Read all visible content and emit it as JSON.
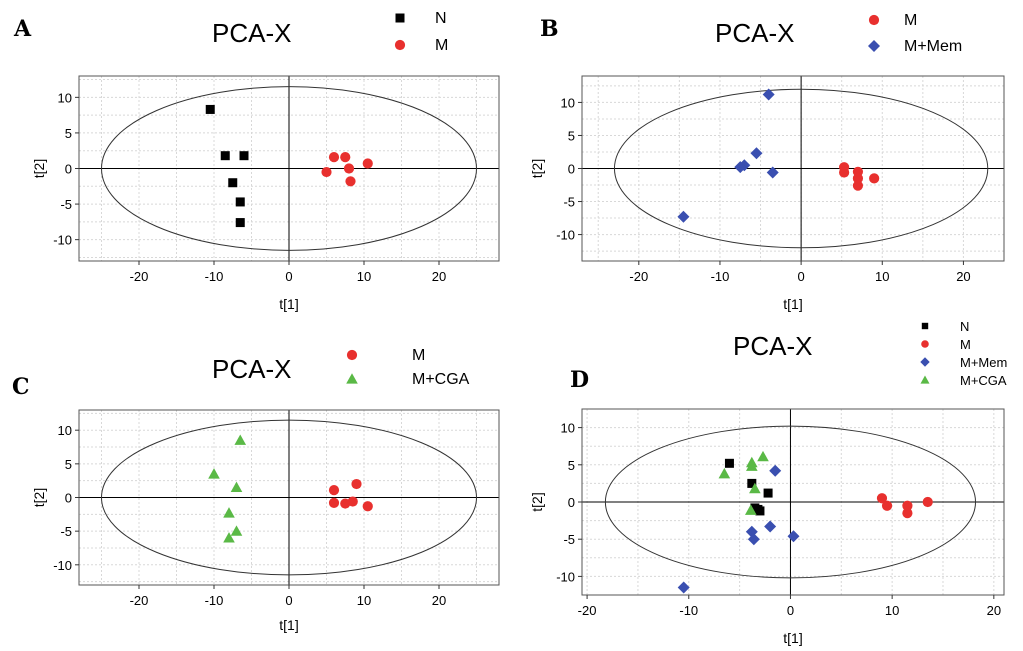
{
  "chart_data": [
    {
      "panel": "A",
      "type": "scatter",
      "title": "PCA-X",
      "xlabel": "t[1]",
      "ylabel": "t[2]",
      "xlim": [
        -28,
        28
      ],
      "ylim": [
        -13,
        13
      ],
      "xticks": [
        -20,
        -10,
        0,
        10,
        20
      ],
      "yticks": [
        10,
        5,
        0,
        -5,
        -10
      ],
      "ellipse": {
        "rx": 25,
        "ry": 11.5
      },
      "grid": true,
      "series": [
        {
          "name": "N",
          "color": "#000000",
          "marker": "square",
          "points": [
            [
              -10.5,
              8.3
            ],
            [
              -8.5,
              1.8
            ],
            [
              -6,
              1.8
            ],
            [
              -7.5,
              -2
            ],
            [
              -6.5,
              -4.7
            ],
            [
              -6.5,
              -7.6
            ]
          ]
        },
        {
          "name": "M",
          "color": "#e8302e",
          "marker": "circle",
          "points": [
            [
              6,
              1.6
            ],
            [
              7.5,
              1.6
            ],
            [
              8,
              0
            ],
            [
              10.5,
              0.7
            ],
            [
              5,
              -0.5
            ],
            [
              8.2,
              -1.8
            ]
          ]
        }
      ]
    },
    {
      "panel": "B",
      "type": "scatter",
      "title": "PCA-X",
      "xlabel": "t[1]",
      "ylabel": "t[2]",
      "xlim": [
        -27,
        25
      ],
      "ylim": [
        -14,
        14
      ],
      "xticks": [
        -20,
        -10,
        0,
        10,
        20
      ],
      "yticks": [
        10,
        5,
        0,
        -5,
        -10
      ],
      "ellipse": {
        "rx": 23,
        "ry": 12
      },
      "grid": true,
      "series": [
        {
          "name": "M",
          "color": "#e8302e",
          "marker": "circle",
          "points": [
            [
              5.3,
              0.2
            ],
            [
              5.3,
              -0.6
            ],
            [
              7,
              -0.5
            ],
            [
              7,
              -1.5
            ],
            [
              7,
              -2.6
            ],
            [
              9,
              -1.5
            ]
          ]
        },
        {
          "name": "M+Mem",
          "color": "#3a4fb0",
          "marker": "diamond",
          "points": [
            [
              -4,
              11.2
            ],
            [
              -5.5,
              2.3
            ],
            [
              -7,
              0.5
            ],
            [
              -7.5,
              0.2
            ],
            [
              -3.5,
              -0.6
            ],
            [
              -14.5,
              -7.3
            ]
          ]
        }
      ]
    },
    {
      "panel": "C",
      "type": "scatter",
      "title": "PCA-X",
      "xlabel": "t[1]",
      "ylabel": "t[2]",
      "xlim": [
        -28,
        28
      ],
      "ylim": [
        -13,
        13
      ],
      "xticks": [
        -20,
        -10,
        0,
        10,
        20
      ],
      "yticks": [
        10,
        5,
        0,
        -5,
        -10
      ],
      "ellipse": {
        "rx": 25,
        "ry": 11.5
      },
      "grid": true,
      "series": [
        {
          "name": "M",
          "color": "#e8302e",
          "marker": "circle",
          "points": [
            [
              6,
              1.1
            ],
            [
              9,
              2
            ],
            [
              6,
              -0.8
            ],
            [
              7.5,
              -0.9
            ],
            [
              8.5,
              -0.6
            ],
            [
              10.5,
              -1.3
            ]
          ]
        },
        {
          "name": "M+CGA",
          "color": "#5ab946",
          "marker": "triangle",
          "points": [
            [
              -6.5,
              8.5
            ],
            [
              -10,
              3.5
            ],
            [
              -7,
              1.5
            ],
            [
              -8,
              -2.3
            ],
            [
              -7,
              -5
            ],
            [
              -8,
              -6
            ]
          ]
        }
      ]
    },
    {
      "panel": "D",
      "type": "scatter",
      "title": "PCA-X",
      "xlabel": "t[1]",
      "ylabel": "t[2]",
      "xlim": [
        -20.5,
        21
      ],
      "ylim": [
        -12.5,
        12.5
      ],
      "xticks": [
        -20,
        -10,
        0,
        10,
        20
      ],
      "yticks": [
        10,
        5,
        0,
        -5,
        -10
      ],
      "ellipse": {
        "rx": 18.2,
        "ry": 10.2
      },
      "grid": true,
      "series": [
        {
          "name": "N",
          "color": "#000000",
          "marker": "square",
          "points": [
            [
              -6,
              5.2
            ],
            [
              -3.8,
              2.5
            ],
            [
              -2.2,
              1.2
            ],
            [
              -3.5,
              -0.8
            ],
            [
              -3.2,
              -1
            ],
            [
              -3,
              -1.2
            ]
          ]
        },
        {
          "name": "M",
          "color": "#e8302e",
          "marker": "circle",
          "points": [
            [
              9,
              0.5
            ],
            [
              9.5,
              -0.5
            ],
            [
              11.5,
              -0.5
            ],
            [
              13.5,
              0
            ],
            [
              11.5,
              -1.5
            ]
          ]
        },
        {
          "name": "M+Mem",
          "color": "#3a4fb0",
          "marker": "diamond",
          "points": [
            [
              -1.5,
              4.2
            ],
            [
              -2,
              -3.3
            ],
            [
              -3.8,
              -4
            ],
            [
              -3.6,
              -5
            ],
            [
              0.3,
              -4.6
            ],
            [
              -10.5,
              -11.5
            ]
          ]
        },
        {
          "name": "M+CGA",
          "color": "#5ab946",
          "marker": "triangle",
          "points": [
            [
              -6.5,
              3.8
            ],
            [
              -3.8,
              5.3
            ],
            [
              -3.8,
              4.8
            ],
            [
              -3.5,
              1.8
            ],
            [
              -2.7,
              6.1
            ],
            [
              -3.9,
              -1.1
            ]
          ]
        }
      ]
    }
  ]
}
